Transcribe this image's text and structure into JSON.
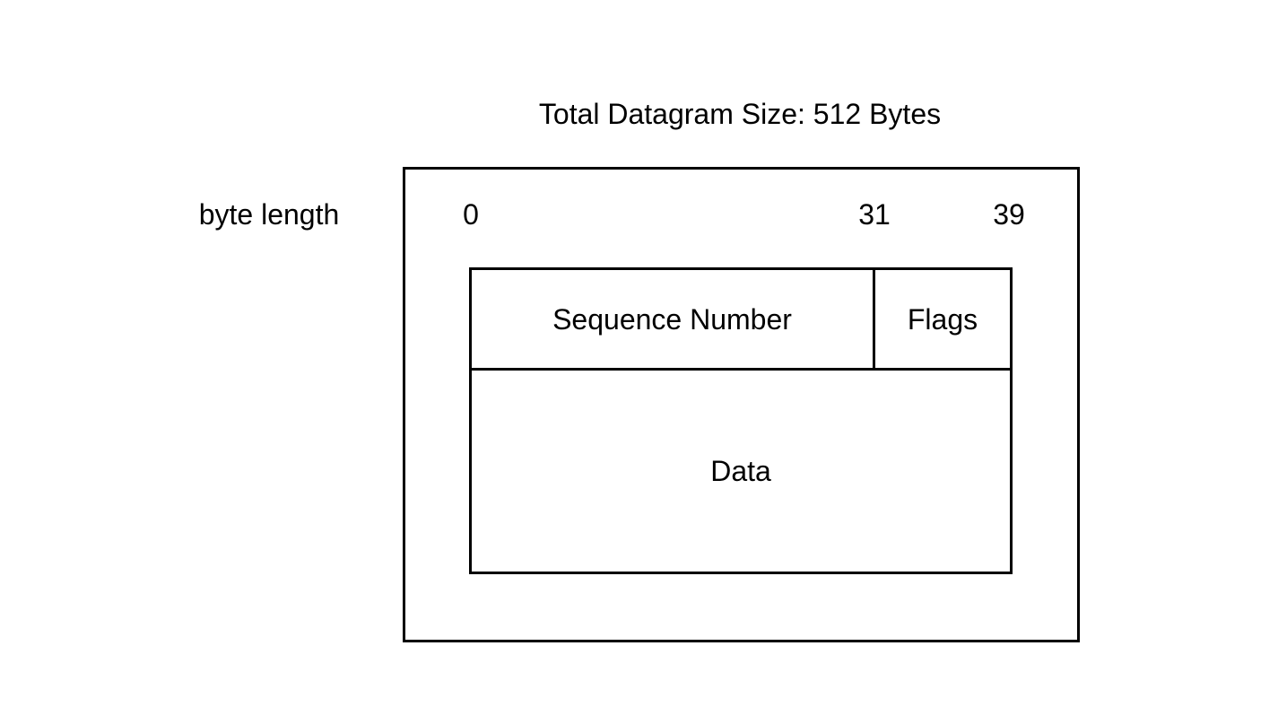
{
  "title": "Total Datagram Size: 512 Bytes",
  "axis": {
    "label": "byte length",
    "ticks": [
      "0",
      "31",
      "39"
    ]
  },
  "fields": {
    "sequence_number": "Sequence Number",
    "flags": "Flags",
    "data": "Data"
  }
}
